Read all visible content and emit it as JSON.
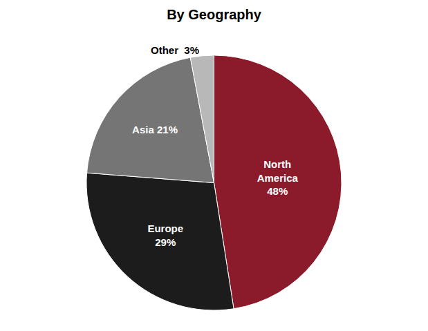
{
  "chart_data": {
    "type": "pie",
    "title": "By Geography",
    "categories": [
      "North\nAmerica\n48%",
      "Europe\n29%",
      "Asia 21%",
      "Other  3%"
    ],
    "values": [
      48,
      29,
      21,
      3
    ],
    "colors": [
      "#8B1A2A",
      "#1C1C1C",
      "#757575",
      "#B8B8B8"
    ]
  }
}
